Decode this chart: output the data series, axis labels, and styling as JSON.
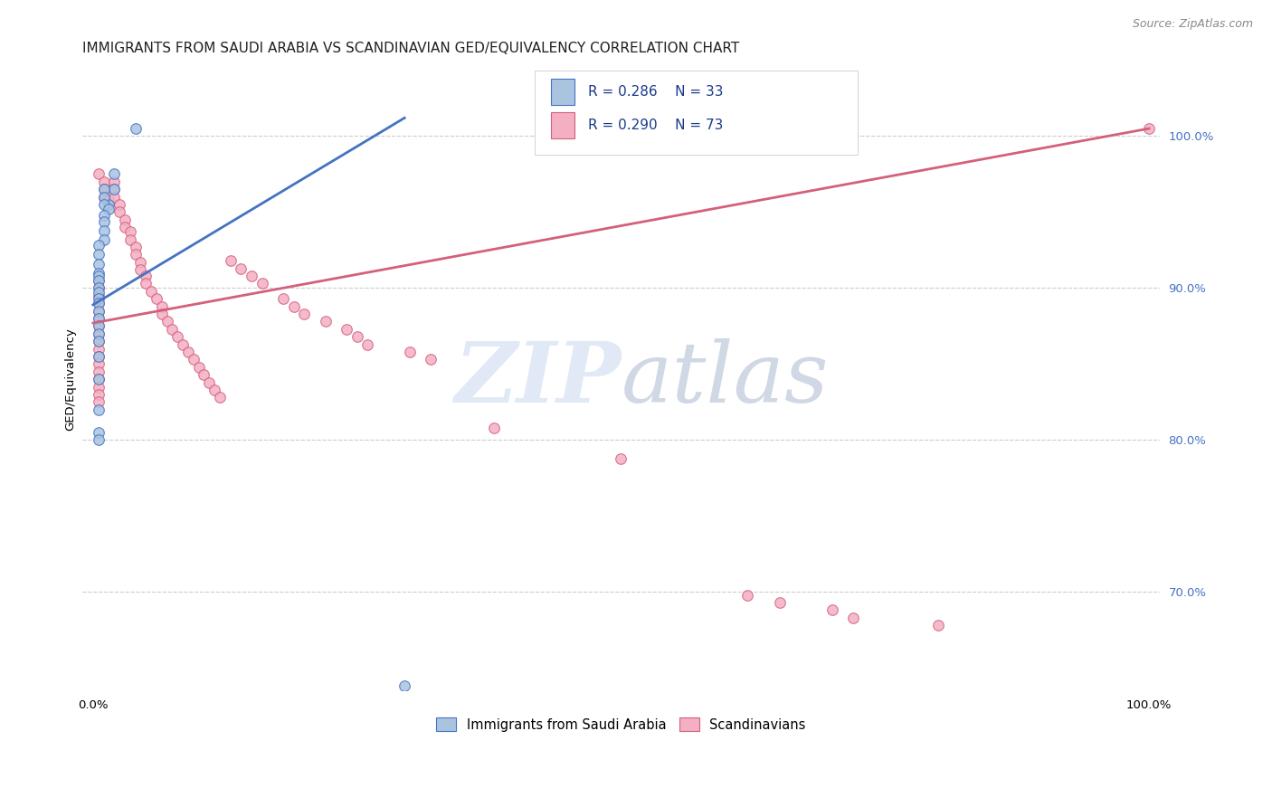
{
  "title": "IMMIGRANTS FROM SAUDI ARABIA VS SCANDINAVIAN GED/EQUIVALENCY CORRELATION CHART",
  "source": "Source: ZipAtlas.com",
  "ylabel": "GED/Equivalency",
  "ytick_values": [
    0.7,
    0.8,
    0.9,
    1.0
  ],
  "xlim": [
    -0.01,
    1.01
  ],
  "ylim": [
    0.635,
    1.045
  ],
  "legend_blue_r": "R = 0.286",
  "legend_blue_n": "N = 33",
  "legend_pink_r": "R = 0.290",
  "legend_pink_n": "N = 73",
  "watermark_zip": "ZIP",
  "watermark_atlas": "atlas",
  "blue_color": "#aac4e0",
  "blue_edge_color": "#4472c4",
  "pink_color": "#f4afc3",
  "pink_edge_color": "#d4607a",
  "blue_line_color": "#4472c4",
  "pink_line_color": "#d4607a",
  "title_color": "#222222",
  "source_color": "#888888",
  "tick_color": "#4472c4",
  "grid_color": "#cccccc",
  "blue_scatter_x": [
    0.04,
    0.02,
    0.02,
    0.015,
    0.01,
    0.01,
    0.01,
    0.015,
    0.01,
    0.01,
    0.01,
    0.01,
    0.005,
    0.005,
    0.005,
    0.005,
    0.005,
    0.005,
    0.005,
    0.005,
    0.005,
    0.005,
    0.005,
    0.005,
    0.005,
    0.005,
    0.005,
    0.005,
    0.005,
    0.005,
    0.005,
    0.005,
    0.295
  ],
  "blue_scatter_y": [
    1.005,
    0.975,
    0.965,
    0.955,
    0.965,
    0.96,
    0.955,
    0.952,
    0.948,
    0.944,
    0.938,
    0.932,
    0.928,
    0.922,
    0.916,
    0.91,
    0.908,
    0.905,
    0.9,
    0.897,
    0.893,
    0.89,
    0.885,
    0.88,
    0.875,
    0.87,
    0.865,
    0.855,
    0.84,
    0.82,
    0.805,
    0.8,
    0.638
  ],
  "pink_scatter_x": [
    0.005,
    0.01,
    0.01,
    0.01,
    0.015,
    0.02,
    0.02,
    0.02,
    0.025,
    0.025,
    0.03,
    0.03,
    0.035,
    0.035,
    0.04,
    0.04,
    0.045,
    0.045,
    0.05,
    0.05,
    0.055,
    0.06,
    0.065,
    0.065,
    0.07,
    0.075,
    0.08,
    0.085,
    0.09,
    0.095,
    0.1,
    0.105,
    0.11,
    0.115,
    0.12,
    0.13,
    0.14,
    0.15,
    0.16,
    0.18,
    0.19,
    0.2,
    0.22,
    0.24,
    0.25,
    0.26,
    0.3,
    0.32,
    0.38,
    0.5,
    0.62,
    0.65,
    0.7,
    0.72,
    0.8,
    1.0,
    0.005,
    0.005,
    0.005,
    0.005,
    0.005,
    0.005,
    0.005,
    0.005,
    0.005,
    0.005,
    0.005,
    0.005,
    0.005,
    0.005,
    0.005,
    0.005,
    0.005
  ],
  "pink_scatter_y": [
    0.975,
    0.97,
    0.965,
    0.96,
    0.958,
    0.97,
    0.965,
    0.96,
    0.955,
    0.95,
    0.945,
    0.94,
    0.937,
    0.932,
    0.927,
    0.922,
    0.917,
    0.912,
    0.908,
    0.903,
    0.898,
    0.893,
    0.888,
    0.883,
    0.878,
    0.873,
    0.868,
    0.863,
    0.858,
    0.853,
    0.848,
    0.843,
    0.838,
    0.833,
    0.828,
    0.918,
    0.913,
    0.908,
    0.903,
    0.893,
    0.888,
    0.883,
    0.878,
    0.873,
    0.868,
    0.863,
    0.858,
    0.853,
    0.808,
    0.788,
    0.698,
    0.693,
    0.688,
    0.683,
    0.678,
    1.005,
    0.905,
    0.9,
    0.895,
    0.89,
    0.885,
    0.88,
    0.875,
    0.87,
    0.865,
    0.86,
    0.855,
    0.85,
    0.845,
    0.84,
    0.835,
    0.83,
    0.825
  ],
  "blue_line_x": [
    0.0,
    0.295
  ],
  "blue_line_y": [
    0.889,
    1.012
  ],
  "pink_line_x": [
    0.0,
    1.0
  ],
  "pink_line_y": [
    0.877,
    1.005
  ],
  "marker_size": 70,
  "title_fontsize": 11,
  "source_fontsize": 9,
  "tick_fontsize": 9.5,
  "ylabel_fontsize": 9.5
}
